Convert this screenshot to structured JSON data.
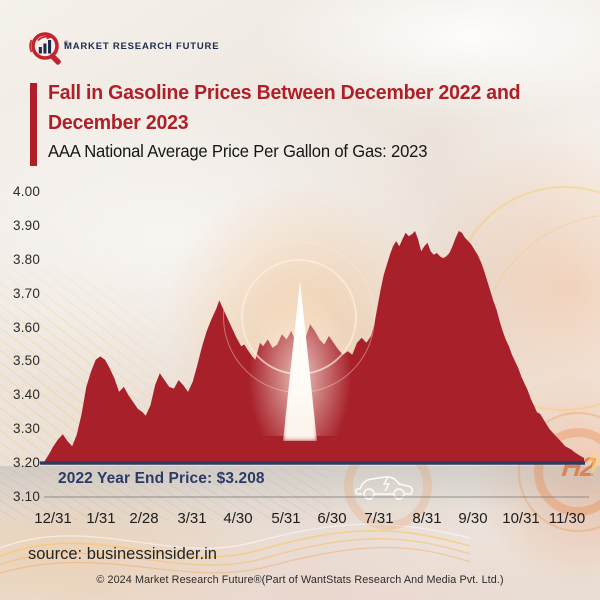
{
  "brand": {
    "logo_text": "MARKET RESEARCH FUTURE",
    "reg_mark": "®"
  },
  "title": {
    "lines": [
      "Fall in Gasoline Prices Between December 2022 and",
      "December 2023"
    ],
    "subtitle": "AAA National Average Price Per Gallon of Gas: 2023"
  },
  "annotation": {
    "label": "2022 Year End Price: $3.208"
  },
  "source": {
    "text": "source: businessinsider.in"
  },
  "footer": {
    "copyright": "© 2024 Market Research Future®(Part of WantStats Research And Media Pvt. Ltd.)"
  },
  "decor": {
    "h2_label": "H2",
    "icons": [
      "electric-car-icon",
      "hydrogen-fuel-icon",
      "flame-glow-icon",
      "fuel-rings-icon"
    ]
  },
  "colors": {
    "area_red": "#a8212a",
    "title_red": "#b01f27",
    "baseline_navy": "#2e3a5f",
    "annotation_navy": "#2c3a69",
    "axis_gray": "#82807d",
    "logo_navy": "#1d2b4d",
    "logo_red": "#c4232e"
  },
  "chart_data": {
    "type": "area",
    "title": "AAA National Average Price Per Gallon of Gas: 2023",
    "unit": "USD per gallon",
    "xlabel": "",
    "ylabel": "",
    "grid": false,
    "legend": "none",
    "ylim": [
      3.1,
      4.0
    ],
    "y_ticks": [
      "4.00",
      "3.90",
      "3.80",
      "3.70",
      "3.60",
      "3.50",
      "3.40",
      "3.30",
      "3.20",
      "3.10"
    ],
    "x_tick_labels": [
      "12/31",
      "1/31",
      "2/28",
      "3/31",
      "4/30",
      "5/31",
      "6/30",
      "7/31",
      "8/31",
      "9/30",
      "10/31",
      "11/30"
    ],
    "x_tick_day_offsets": [
      0,
      31,
      59,
      90,
      120,
      151,
      181,
      212,
      243,
      273,
      304,
      334
    ],
    "x_domain_days": [
      0,
      345
    ],
    "baseline_value": 3.2,
    "baseline_note": "2022 Year End Price: $3.208",
    "series": [
      {
        "name": "AAA national average gasoline price, Dec 31 2022 - Dec 2023",
        "points_format": [
          "day_offset_from_12_31_2022",
          "usd_per_gallon"
        ],
        "points": [
          [
            0,
            3.203
          ],
          [
            3,
            3.225
          ],
          [
            6,
            3.25
          ],
          [
            9,
            3.27
          ],
          [
            12,
            3.285
          ],
          [
            15,
            3.265
          ],
          [
            18,
            3.25
          ],
          [
            21,
            3.285
          ],
          [
            24,
            3.345
          ],
          [
            27,
            3.425
          ],
          [
            30,
            3.47
          ],
          [
            33,
            3.505
          ],
          [
            36,
            3.515
          ],
          [
            39,
            3.505
          ],
          [
            42,
            3.48
          ],
          [
            45,
            3.45
          ],
          [
            48,
            3.41
          ],
          [
            51,
            3.425
          ],
          [
            54,
            3.4
          ],
          [
            57,
            3.38
          ],
          [
            60,
            3.36
          ],
          [
            63,
            3.35
          ],
          [
            65,
            3.34
          ],
          [
            68,
            3.37
          ],
          [
            71,
            3.43
          ],
          [
            74,
            3.465
          ],
          [
            77,
            3.445
          ],
          [
            80,
            3.425
          ],
          [
            83,
            3.42
          ],
          [
            86,
            3.445
          ],
          [
            89,
            3.43
          ],
          [
            92,
            3.41
          ],
          [
            95,
            3.44
          ],
          [
            98,
            3.49
          ],
          [
            101,
            3.545
          ],
          [
            104,
            3.59
          ],
          [
            107,
            3.625
          ],
          [
            110,
            3.655
          ],
          [
            112,
            3.68
          ],
          [
            114,
            3.66
          ],
          [
            117,
            3.63
          ],
          [
            120,
            3.6
          ],
          [
            123,
            3.57
          ],
          [
            126,
            3.545
          ],
          [
            128,
            3.55
          ],
          [
            130,
            3.535
          ],
          [
            133,
            3.515
          ],
          [
            135,
            3.505
          ],
          [
            138,
            3.555
          ],
          [
            140,
            3.545
          ],
          [
            143,
            3.565
          ],
          [
            146,
            3.54
          ],
          [
            149,
            3.55
          ],
          [
            152,
            3.58
          ],
          [
            155,
            3.565
          ],
          [
            158,
            3.59
          ],
          [
            161,
            3.555
          ],
          [
            164,
            3.545
          ],
          [
            167,
            3.57
          ],
          [
            170,
            3.61
          ],
          [
            173,
            3.59
          ],
          [
            176,
            3.565
          ],
          [
            179,
            3.55
          ],
          [
            182,
            3.575
          ],
          [
            185,
            3.555
          ],
          [
            188,
            3.535
          ],
          [
            191,
            3.52
          ],
          [
            194,
            3.53
          ],
          [
            197,
            3.52
          ],
          [
            200,
            3.555
          ],
          [
            203,
            3.57
          ],
          [
            206,
            3.555
          ],
          [
            209,
            3.575
          ],
          [
            211,
            3.61
          ],
          [
            213,
            3.66
          ],
          [
            215,
            3.71
          ],
          [
            217,
            3.755
          ],
          [
            219,
            3.785
          ],
          [
            221,
            3.815
          ],
          [
            223,
            3.84
          ],
          [
            225,
            3.855
          ],
          [
            227,
            3.84
          ],
          [
            229,
            3.86
          ],
          [
            231,
            3.88
          ],
          [
            233,
            3.87
          ],
          [
            235,
            3.875
          ],
          [
            237,
            3.885
          ],
          [
            239,
            3.86
          ],
          [
            241,
            3.825
          ],
          [
            243,
            3.84
          ],
          [
            245,
            3.85
          ],
          [
            247,
            3.825
          ],
          [
            249,
            3.815
          ],
          [
            251,
            3.82
          ],
          [
            253,
            3.81
          ],
          [
            255,
            3.805
          ],
          [
            257,
            3.81
          ],
          [
            259,
            3.82
          ],
          [
            261,
            3.84
          ],
          [
            263,
            3.865
          ],
          [
            265,
            3.885
          ],
          [
            267,
            3.88
          ],
          [
            269,
            3.865
          ],
          [
            271,
            3.855
          ],
          [
            273,
            3.845
          ],
          [
            275,
            3.83
          ],
          [
            277,
            3.815
          ],
          [
            279,
            3.795
          ],
          [
            281,
            3.77
          ],
          [
            283,
            3.74
          ],
          [
            285,
            3.71
          ],
          [
            287,
            3.68
          ],
          [
            289,
            3.655
          ],
          [
            291,
            3.62
          ],
          [
            293,
            3.59
          ],
          [
            295,
            3.565
          ],
          [
            297,
            3.545
          ],
          [
            299,
            3.52
          ],
          [
            301,
            3.5
          ],
          [
            303,
            3.48
          ],
          [
            305,
            3.455
          ],
          [
            307,
            3.435
          ],
          [
            309,
            3.415
          ],
          [
            311,
            3.39
          ],
          [
            313,
            3.37
          ],
          [
            315,
            3.35
          ],
          [
            317,
            3.345
          ],
          [
            319,
            3.33
          ],
          [
            321,
            3.315
          ],
          [
            323,
            3.3
          ],
          [
            325,
            3.29
          ],
          [
            327,
            3.28
          ],
          [
            329,
            3.27
          ],
          [
            331,
            3.26
          ],
          [
            333,
            3.25
          ],
          [
            335,
            3.245
          ],
          [
            337,
            3.24
          ],
          [
            339,
            3.232
          ],
          [
            341,
            3.226
          ],
          [
            343,
            3.22
          ],
          [
            345,
            3.215
          ]
        ]
      }
    ]
  }
}
